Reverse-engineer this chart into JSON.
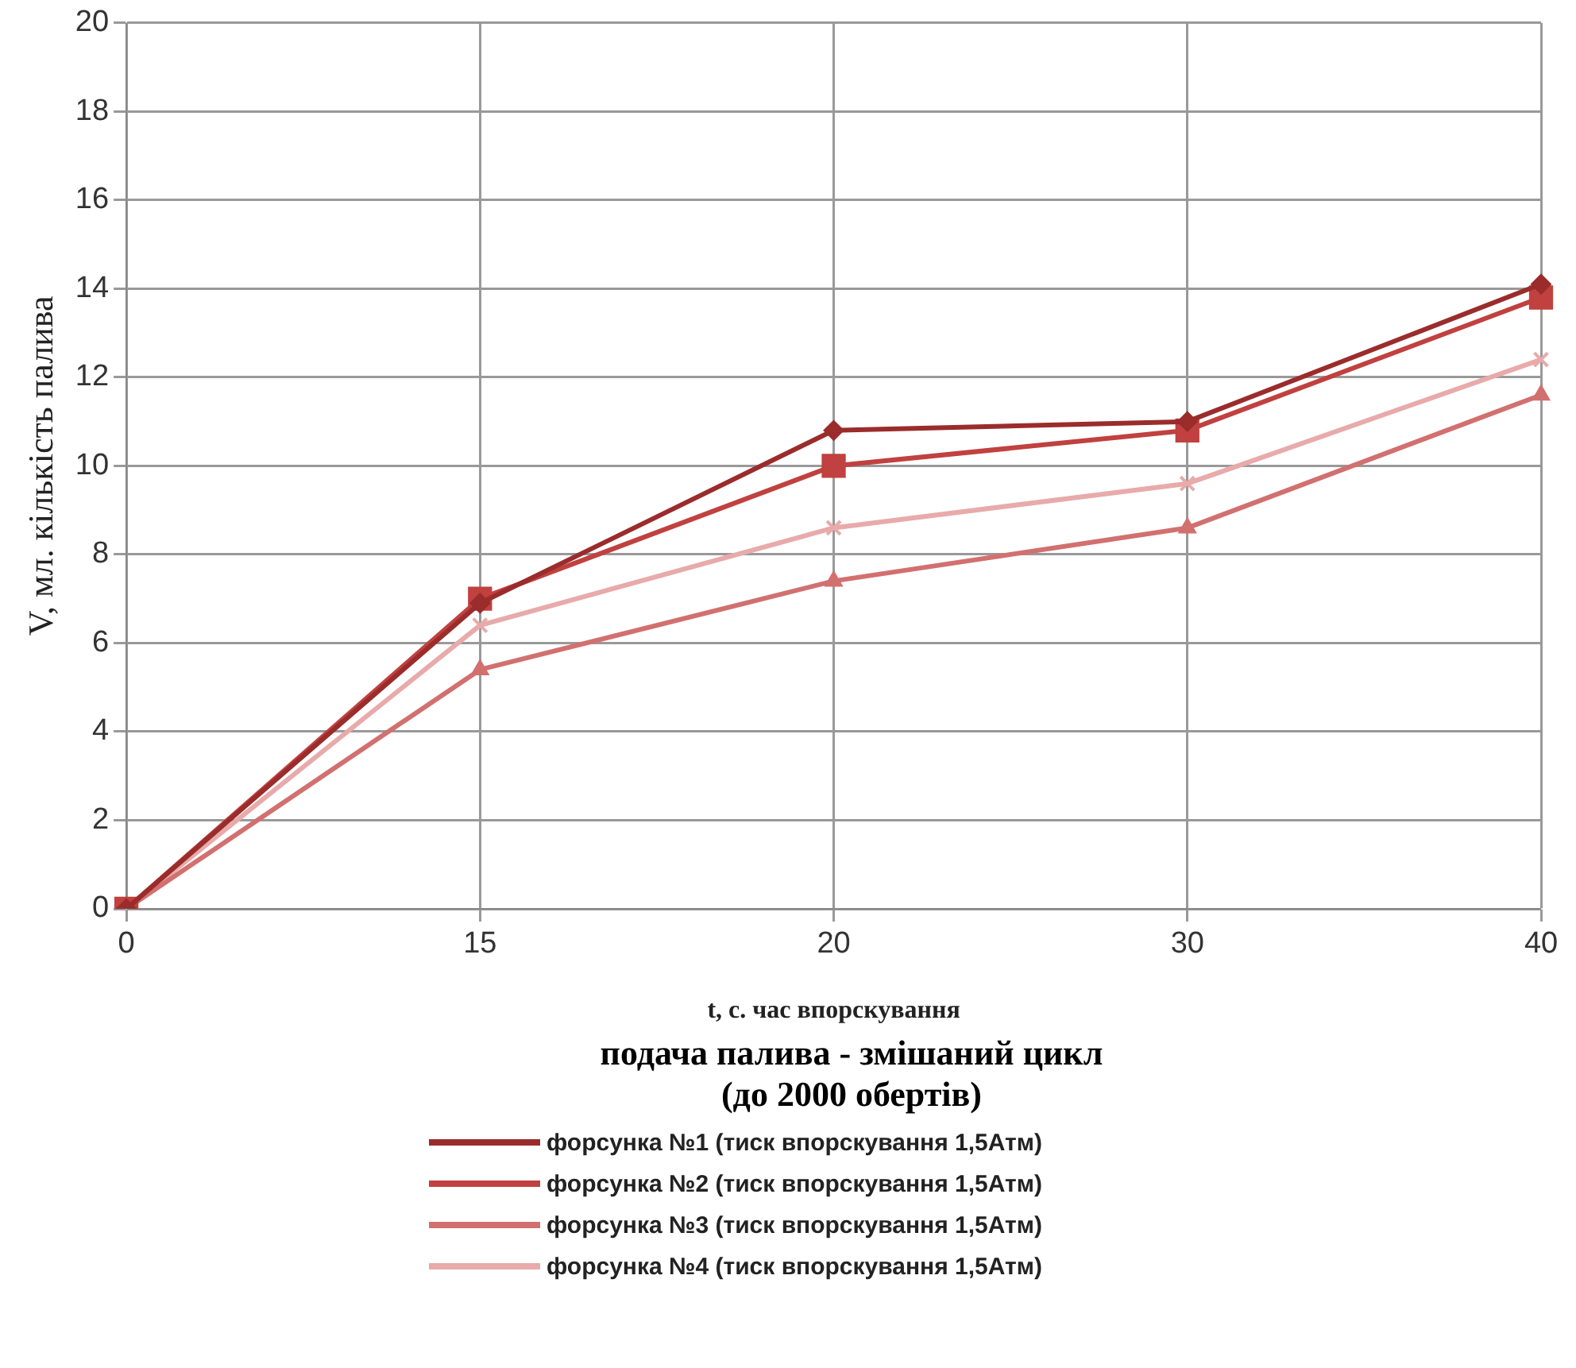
{
  "chart_data": {
    "type": "line",
    "title": "подача палива - змішаний цикл\n(до 2000 обертів)",
    "xlabel": "t, с. час впорскування",
    "ylabel": "V, мл. кількість палива",
    "categories": [
      "0",
      "15",
      "20",
      "30",
      "40"
    ],
    "ylim": [
      0,
      20
    ],
    "yticks": [
      0,
      2,
      4,
      6,
      8,
      10,
      12,
      14,
      16,
      18,
      20
    ],
    "grid": true,
    "legend": "bottom",
    "series": [
      {
        "name": "форсунка №1 (тиск впорскування 1,5Атм)",
        "color": "#9b2c2c",
        "marker": "diamond",
        "values": [
          0,
          6.9,
          10.8,
          11.0,
          14.1
        ]
      },
      {
        "name": "форсунка №2 (тиск впорскування 1,5Атм)",
        "color": "#c0413f",
        "marker": "square",
        "values": [
          0,
          7.0,
          10.0,
          10.8,
          13.8
        ]
      },
      {
        "name": "форсунка №3 (тиск впорскування 1,5Атм)",
        "color": "#d27070",
        "marker": "triangle",
        "values": [
          0,
          5.4,
          7.4,
          8.6,
          11.6
        ]
      },
      {
        "name": "форсунка №4 (тиск впорскування 1,5Атм)",
        "color": "#e8aaaa",
        "marker": "cross",
        "values": [
          0,
          6.4,
          8.6,
          9.6,
          12.4
        ]
      }
    ]
  }
}
